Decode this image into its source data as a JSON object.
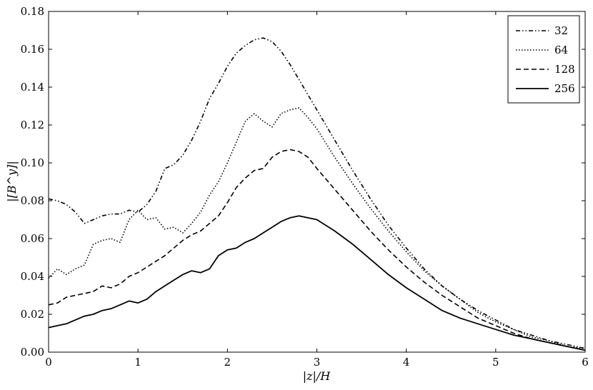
{
  "chart_data": {
    "type": "line",
    "xlabel": "|z|/H",
    "ylabel": "|[B^y]|",
    "xlim": [
      0,
      6
    ],
    "ylim": [
      0,
      0.18
    ],
    "xticks": [
      "0",
      "1",
      "2",
      "3",
      "4",
      "5",
      "6"
    ],
    "yticks": [
      "0.00",
      "0.02",
      "0.04",
      "0.06",
      "0.08",
      "0.10",
      "0.12",
      "0.14",
      "0.16",
      "0.18"
    ],
    "grid": false,
    "legend_position": "top-right",
    "series": [
      {
        "name": "32",
        "style": "dashdot-dot",
        "x": [
          0,
          0.1,
          0.2,
          0.3,
          0.4,
          0.5,
          0.6,
          0.7,
          0.8,
          0.9,
          1.0,
          1.1,
          1.2,
          1.3,
          1.4,
          1.5,
          1.6,
          1.7,
          1.8,
          1.9,
          2.0,
          2.1,
          2.2,
          2.3,
          2.4,
          2.5,
          2.6,
          2.7,
          2.8,
          2.9,
          3.0,
          3.2,
          3.4,
          3.6,
          3.8,
          4.0,
          4.2,
          4.4,
          4.6,
          4.8,
          5.0,
          5.2,
          5.4,
          5.6,
          5.8,
          6.0
        ],
        "y": [
          0.081,
          0.08,
          0.078,
          0.074,
          0.068,
          0.07,
          0.072,
          0.073,
          0.073,
          0.075,
          0.074,
          0.078,
          0.085,
          0.097,
          0.099,
          0.104,
          0.112,
          0.122,
          0.134,
          0.142,
          0.151,
          0.158,
          0.162,
          0.165,
          0.166,
          0.164,
          0.159,
          0.152,
          0.144,
          0.136,
          0.128,
          0.112,
          0.096,
          0.081,
          0.067,
          0.055,
          0.044,
          0.035,
          0.028,
          0.022,
          0.017,
          0.012,
          0.009,
          0.006,
          0.004,
          0.002
        ]
      },
      {
        "name": "64",
        "style": "dotted",
        "x": [
          0,
          0.1,
          0.2,
          0.3,
          0.4,
          0.5,
          0.6,
          0.7,
          0.8,
          0.9,
          1.0,
          1.1,
          1.2,
          1.3,
          1.4,
          1.5,
          1.6,
          1.7,
          1.8,
          1.9,
          2.0,
          2.1,
          2.2,
          2.3,
          2.4,
          2.5,
          2.6,
          2.7,
          2.8,
          2.9,
          3.0,
          3.2,
          3.4,
          3.6,
          3.8,
          4.0,
          4.2,
          4.4,
          4.6,
          4.8,
          5.0,
          5.2,
          5.4,
          5.6,
          5.8,
          6.0
        ],
        "y": [
          0.039,
          0.044,
          0.041,
          0.044,
          0.046,
          0.057,
          0.059,
          0.06,
          0.058,
          0.07,
          0.075,
          0.07,
          0.071,
          0.065,
          0.066,
          0.063,
          0.068,
          0.074,
          0.083,
          0.09,
          0.1,
          0.111,
          0.122,
          0.126,
          0.122,
          0.119,
          0.126,
          0.128,
          0.129,
          0.124,
          0.118,
          0.103,
          0.089,
          0.076,
          0.064,
          0.053,
          0.043,
          0.035,
          0.028,
          0.021,
          0.016,
          0.012,
          0.008,
          0.006,
          0.003,
          0.002
        ]
      },
      {
        "name": "128",
        "style": "dashed",
        "x": [
          0,
          0.1,
          0.2,
          0.3,
          0.4,
          0.5,
          0.6,
          0.7,
          0.8,
          0.9,
          1.0,
          1.1,
          1.2,
          1.3,
          1.4,
          1.5,
          1.6,
          1.7,
          1.8,
          1.9,
          2.0,
          2.1,
          2.2,
          2.3,
          2.4,
          2.5,
          2.6,
          2.7,
          2.8,
          2.9,
          3.0,
          3.2,
          3.4,
          3.6,
          3.8,
          4.0,
          4.2,
          4.4,
          4.6,
          4.8,
          5.0,
          5.2,
          5.4,
          5.6,
          5.8,
          6.0
        ],
        "y": [
          0.025,
          0.026,
          0.029,
          0.03,
          0.031,
          0.032,
          0.035,
          0.034,
          0.036,
          0.04,
          0.042,
          0.045,
          0.048,
          0.051,
          0.055,
          0.059,
          0.062,
          0.064,
          0.068,
          0.072,
          0.079,
          0.087,
          0.092,
          0.096,
          0.097,
          0.103,
          0.106,
          0.107,
          0.106,
          0.103,
          0.097,
          0.086,
          0.075,
          0.064,
          0.054,
          0.045,
          0.037,
          0.03,
          0.024,
          0.018,
          0.014,
          0.01,
          0.007,
          0.005,
          0.003,
          0.001
        ]
      },
      {
        "name": "256",
        "style": "solid",
        "x": [
          0,
          0.1,
          0.2,
          0.3,
          0.4,
          0.5,
          0.6,
          0.7,
          0.8,
          0.9,
          1.0,
          1.1,
          1.2,
          1.3,
          1.4,
          1.5,
          1.6,
          1.7,
          1.8,
          1.9,
          2.0,
          2.1,
          2.2,
          2.3,
          2.4,
          2.5,
          2.6,
          2.7,
          2.8,
          2.9,
          3.0,
          3.2,
          3.4,
          3.6,
          3.8,
          4.0,
          4.2,
          4.4,
          4.6,
          4.8,
          5.0,
          5.2,
          5.4,
          5.6,
          5.8,
          6.0
        ],
        "y": [
          0.013,
          0.014,
          0.015,
          0.017,
          0.019,
          0.02,
          0.022,
          0.023,
          0.025,
          0.027,
          0.026,
          0.028,
          0.032,
          0.035,
          0.038,
          0.041,
          0.043,
          0.042,
          0.044,
          0.051,
          0.054,
          0.055,
          0.058,
          0.06,
          0.063,
          0.066,
          0.069,
          0.071,
          0.072,
          0.071,
          0.07,
          0.064,
          0.057,
          0.049,
          0.041,
          0.034,
          0.028,
          0.022,
          0.018,
          0.015,
          0.012,
          0.009,
          0.007,
          0.005,
          0.003,
          0.001
        ]
      }
    ]
  }
}
